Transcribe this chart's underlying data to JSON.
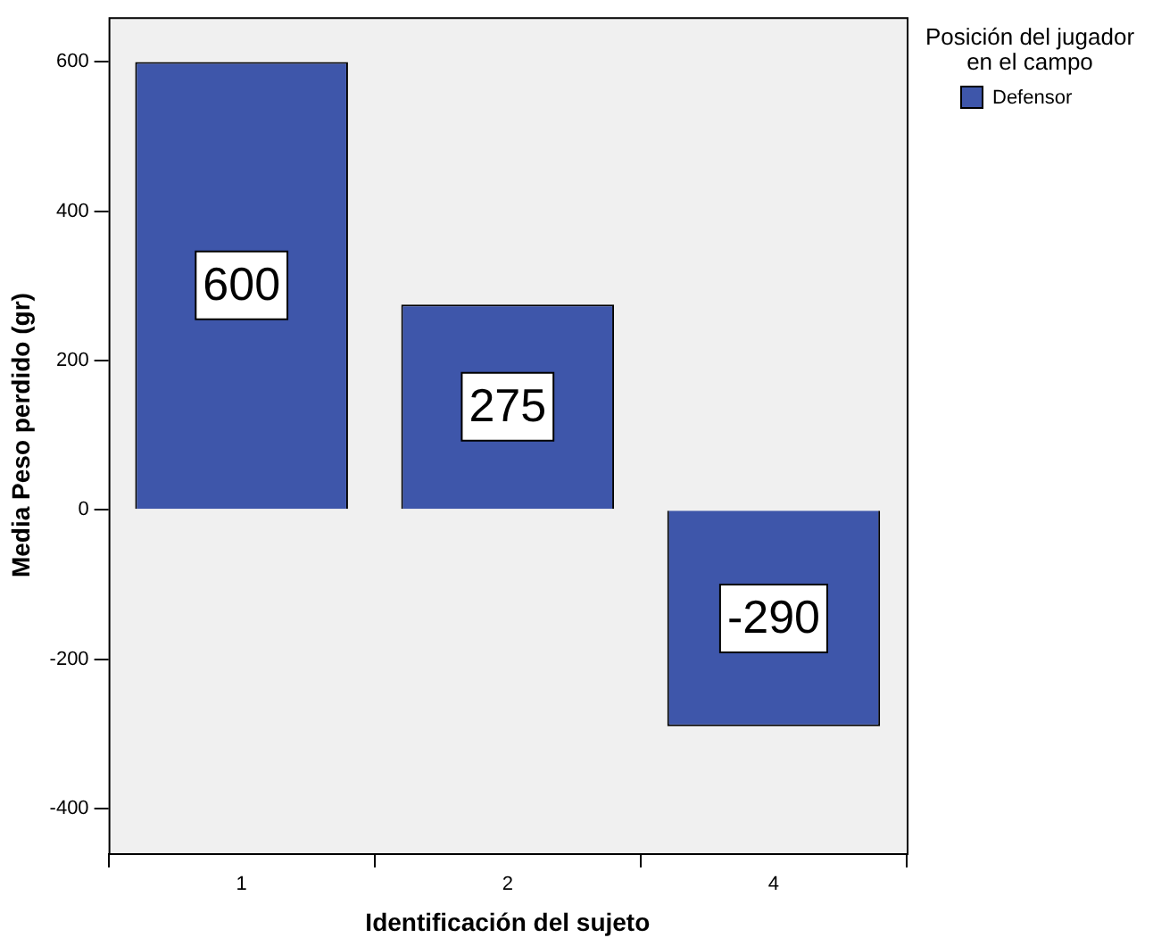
{
  "chart_data": {
    "type": "bar",
    "xlabel": "Identificación del sujeto",
    "ylabel": "Media Peso perdido (gr)",
    "legend_title": "Posición del jugador en el campo",
    "categories": [
      "1",
      "2",
      "4"
    ],
    "series": [
      {
        "name": "Defensor",
        "color": "#3e56aa",
        "values": [
          600,
          275,
          -290
        ]
      }
    ],
    "ylim": [
      -460,
      660
    ],
    "yticks": [
      -400,
      -200,
      0,
      200,
      400,
      600
    ],
    "grid": false,
    "legend": "right",
    "data_labels": true
  }
}
